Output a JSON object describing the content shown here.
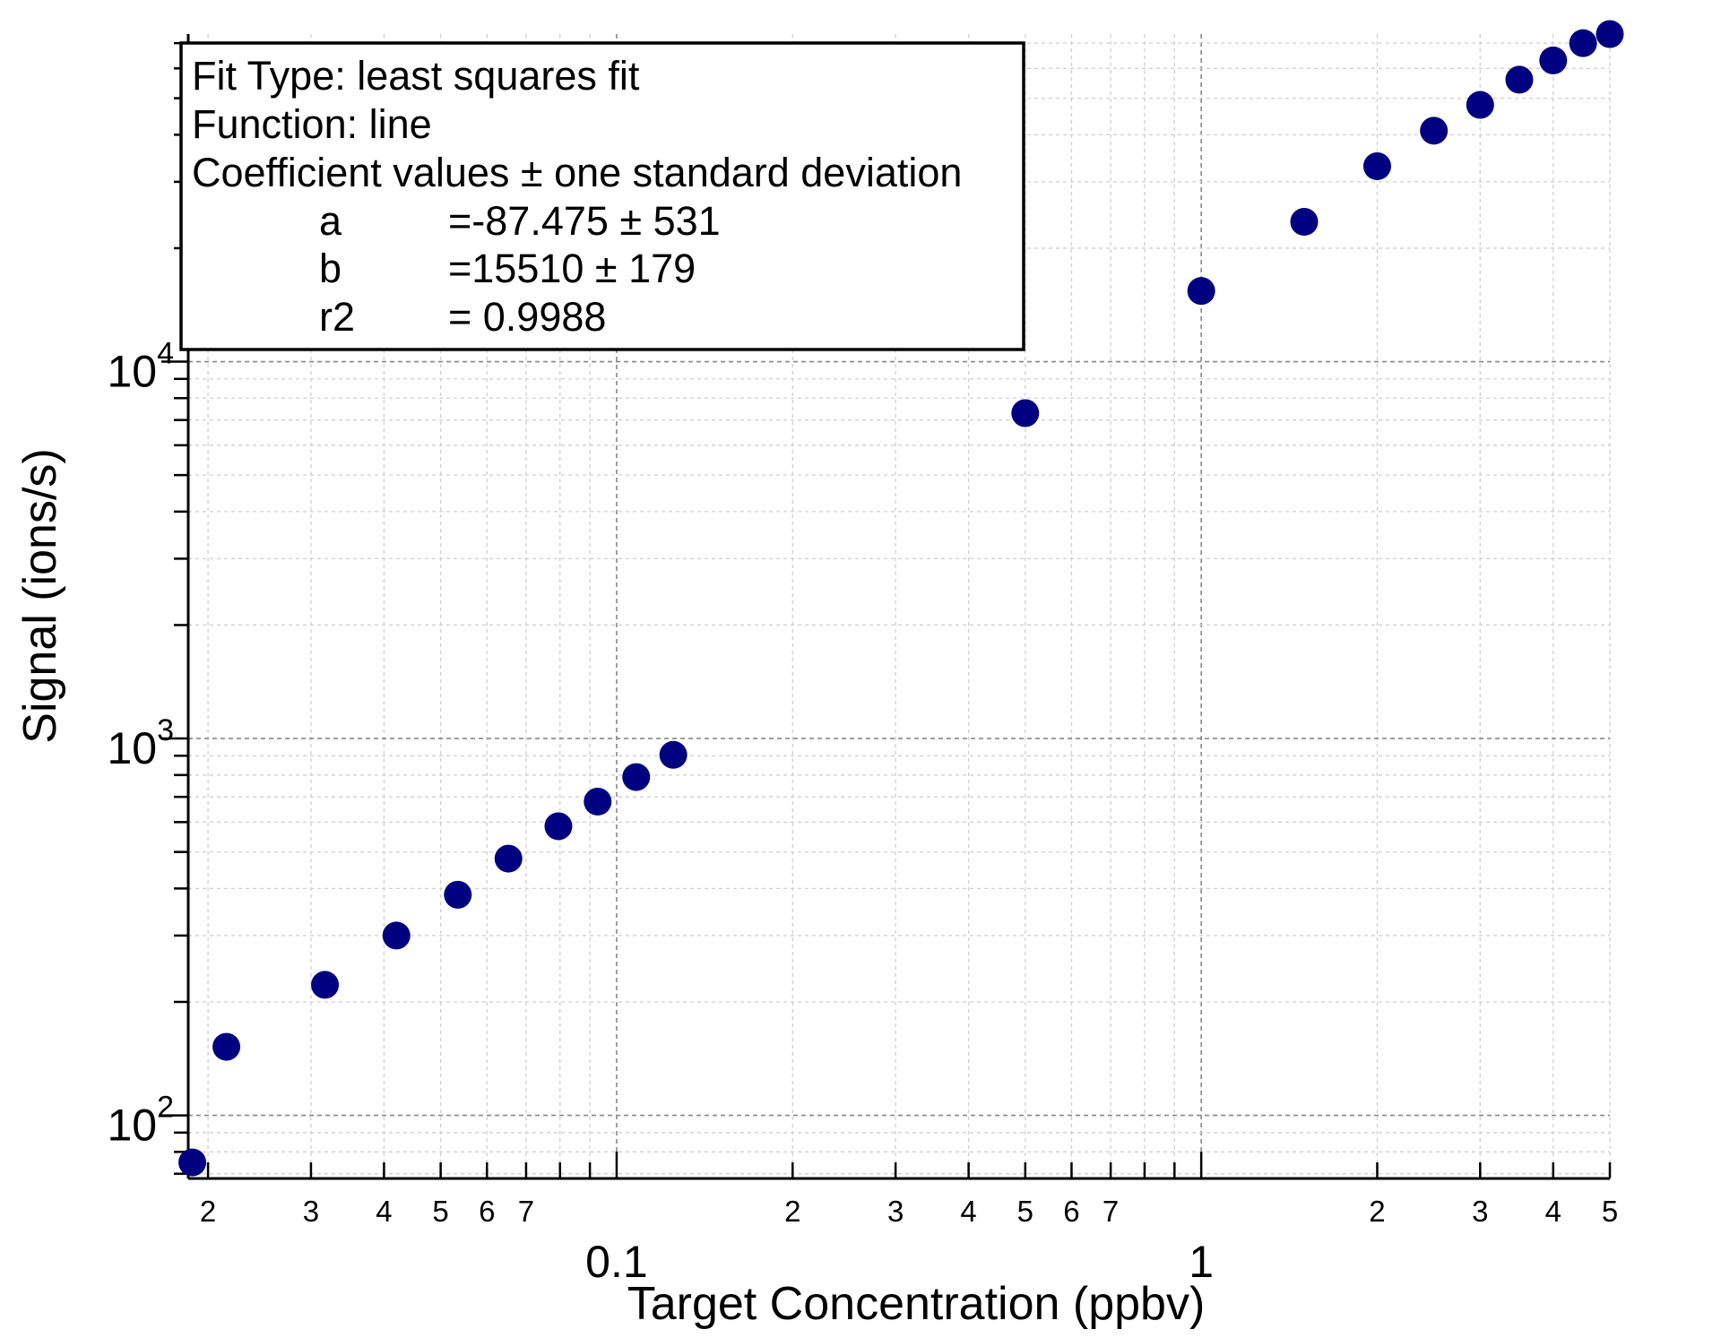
{
  "chart_data": {
    "type": "scatter",
    "title": "",
    "xlabel": "Target Concentration (ppbv)",
    "ylabel": "Signal (ions/s)",
    "x_scale": "log",
    "y_scale": "log",
    "xlim": [
      0.0185,
      5.0
    ],
    "ylim": [
      68,
      74000
    ],
    "grid": true,
    "marker_color": "#000080",
    "x_major_ticks": [
      {
        "value": 0.1,
        "label": "0.1"
      },
      {
        "value": 1,
        "label": "1"
      }
    ],
    "x_minor_labeled_ticks": [
      {
        "value": 0.02,
        "label": "2"
      },
      {
        "value": 0.03,
        "label": "3"
      },
      {
        "value": 0.04,
        "label": "4"
      },
      {
        "value": 0.05,
        "label": "5"
      },
      {
        "value": 0.06,
        "label": "6"
      },
      {
        "value": 0.07,
        "label": "7"
      },
      {
        "value": 0.2,
        "label": "2"
      },
      {
        "value": 0.3,
        "label": "3"
      },
      {
        "value": 0.4,
        "label": "4"
      },
      {
        "value": 0.5,
        "label": "5"
      },
      {
        "value": 0.6,
        "label": "6"
      },
      {
        "value": 0.7,
        "label": "7"
      },
      {
        "value": 2,
        "label": "2"
      },
      {
        "value": 3,
        "label": "3"
      },
      {
        "value": 4,
        "label": "4"
      },
      {
        "value": 5,
        "label": "5"
      }
    ],
    "y_major_ticks": [
      {
        "value": 100,
        "base": "10",
        "exp": "2"
      },
      {
        "value": 1000,
        "base": "10",
        "exp": "3"
      },
      {
        "value": 10000,
        "base": "10",
        "exp": "4"
      }
    ],
    "points": [
      {
        "x": 0.0188,
        "y": 75
      },
      {
        "x": 0.0215,
        "y": 152
      },
      {
        "x": 0.0317,
        "y": 222
      },
      {
        "x": 0.042,
        "y": 300
      },
      {
        "x": 0.0535,
        "y": 385
      },
      {
        "x": 0.0653,
        "y": 480
      },
      {
        "x": 0.0795,
        "y": 585
      },
      {
        "x": 0.0928,
        "y": 680
      },
      {
        "x": 0.108,
        "y": 790
      },
      {
        "x": 0.125,
        "y": 905
      },
      {
        "x": 0.5,
        "y": 7300
      },
      {
        "x": 1.0,
        "y": 15400
      },
      {
        "x": 1.5,
        "y": 23500
      },
      {
        "x": 2.0,
        "y": 33000
      },
      {
        "x": 2.5,
        "y": 41000
      },
      {
        "x": 3.0,
        "y": 48000
      },
      {
        "x": 3.5,
        "y": 56000
      },
      {
        "x": 4.0,
        "y": 63000
      },
      {
        "x": 4.5,
        "y": 70000
      },
      {
        "x": 5.0,
        "y": 74000
      }
    ]
  },
  "fit_box": {
    "line1": "Fit Type: least squares fit",
    "line2": "Function: line",
    "line3": "Coefficient values ± one standard deviation",
    "coefficients": [
      {
        "name": "a",
        "value": "=-87.475 ± 531"
      },
      {
        "name": "b",
        "value": "=15510 ± 179"
      },
      {
        "name": "r2",
        "value": "= 0.9988"
      }
    ]
  }
}
